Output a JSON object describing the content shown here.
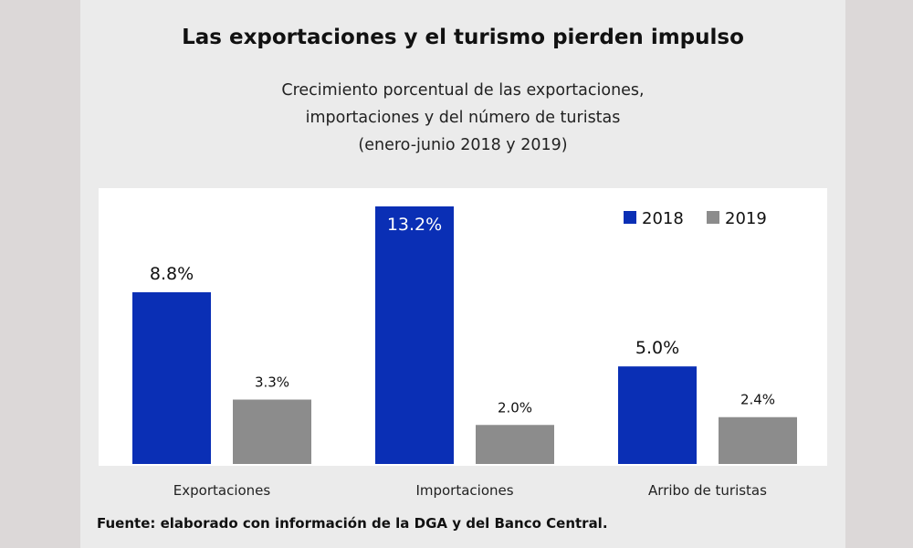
{
  "chart_data": {
    "type": "bar",
    "title": "Las exportaciones y el turismo pierden impulso",
    "subtitle_lines": [
      "Crecimiento porcentual de las exportaciones,",
      "importaciones y del número de turistas",
      "(enero-junio  2018 y 2019)"
    ],
    "categories": [
      "Exportaciones",
      "Importaciones",
      "Arribo de turistas"
    ],
    "series": [
      {
        "name": "2018",
        "color": "#0a2fb5",
        "values": [
          8.8,
          13.2,
          5.0
        ],
        "labels": [
          "8.8%",
          "13.2%",
          "5.0%"
        ]
      },
      {
        "name": "2019",
        "color": "#8c8c8c",
        "values": [
          3.3,
          2.0,
          2.4
        ],
        "labels": [
          "3.3%",
          "2.0%",
          "2.4%"
        ]
      }
    ],
    "ylim": [
      0,
      13.2
    ],
    "legend_position": "top-right",
    "grid": false
  },
  "footer": {
    "source": "Fuente: elaborado con información de la  DGA y del Banco Central."
  }
}
